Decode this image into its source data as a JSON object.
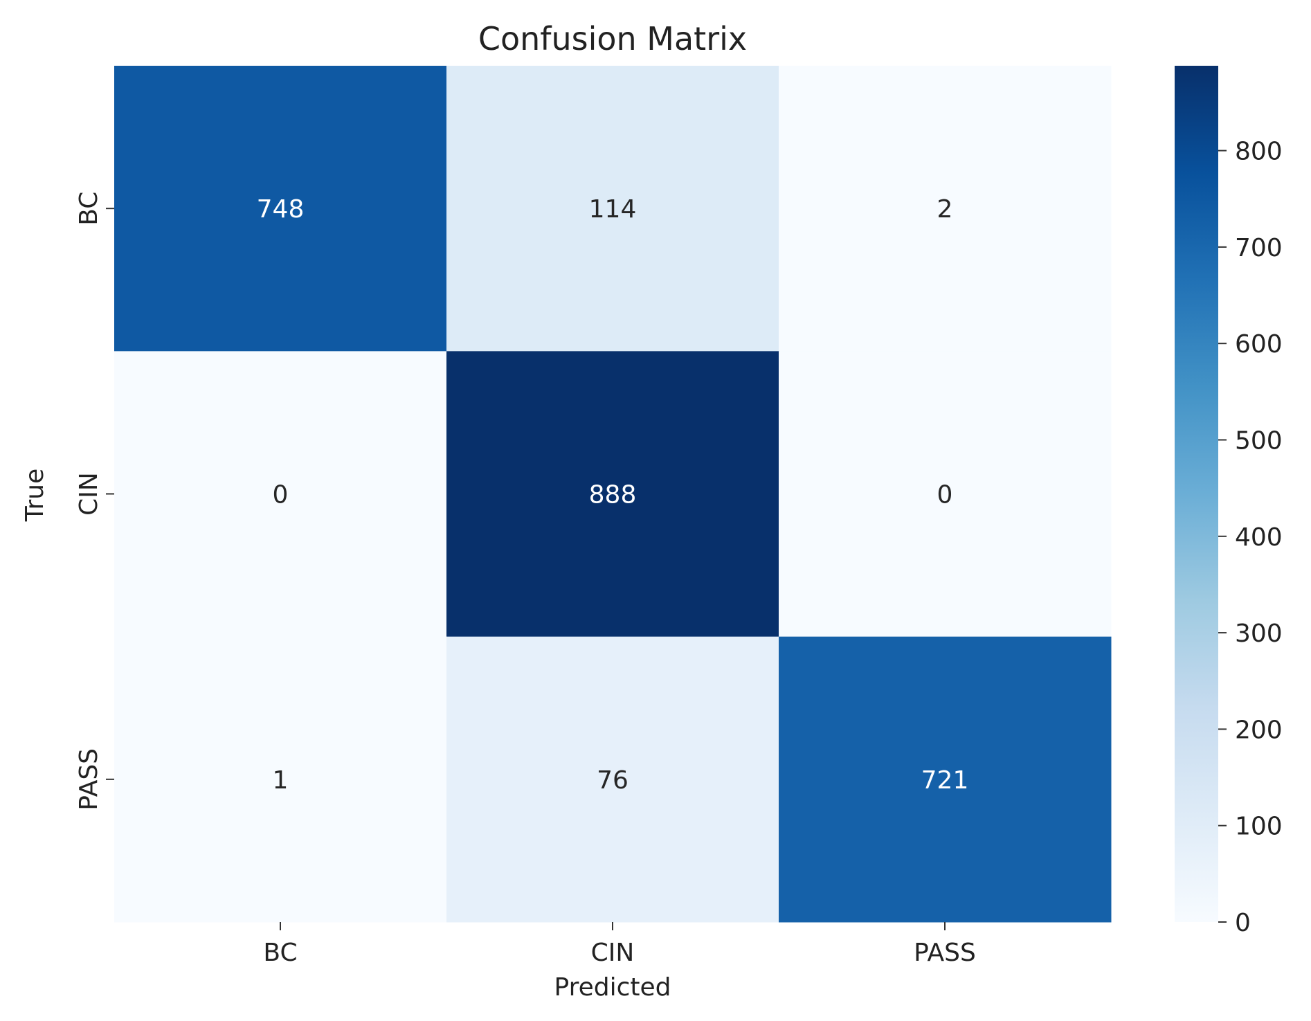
{
  "chart_data": {
    "type": "heatmap",
    "title": "Confusion Matrix",
    "xlabel": "Predicted",
    "ylabel": "True",
    "x_categories": [
      "BC",
      "CIN",
      "PASS"
    ],
    "y_categories": [
      "BC",
      "CIN",
      "PASS"
    ],
    "matrix": [
      [
        748,
        114,
        2
      ],
      [
        0,
        888,
        0
      ],
      [
        1,
        76,
        721
      ]
    ],
    "colormap": "Blues",
    "colorbar": {
      "min": 0,
      "max": 888,
      "ticks": [
        0,
        100,
        200,
        300,
        400,
        500,
        600,
        700,
        800
      ],
      "tick_labels": [
        "0",
        "100",
        "200",
        "300",
        "400",
        "500",
        "600",
        "700",
        "800"
      ]
    },
    "colors": {
      "low": "#f7fbff",
      "high": "#08306b",
      "dark_text": "#262626",
      "light_text": "#ffffff"
    }
  }
}
